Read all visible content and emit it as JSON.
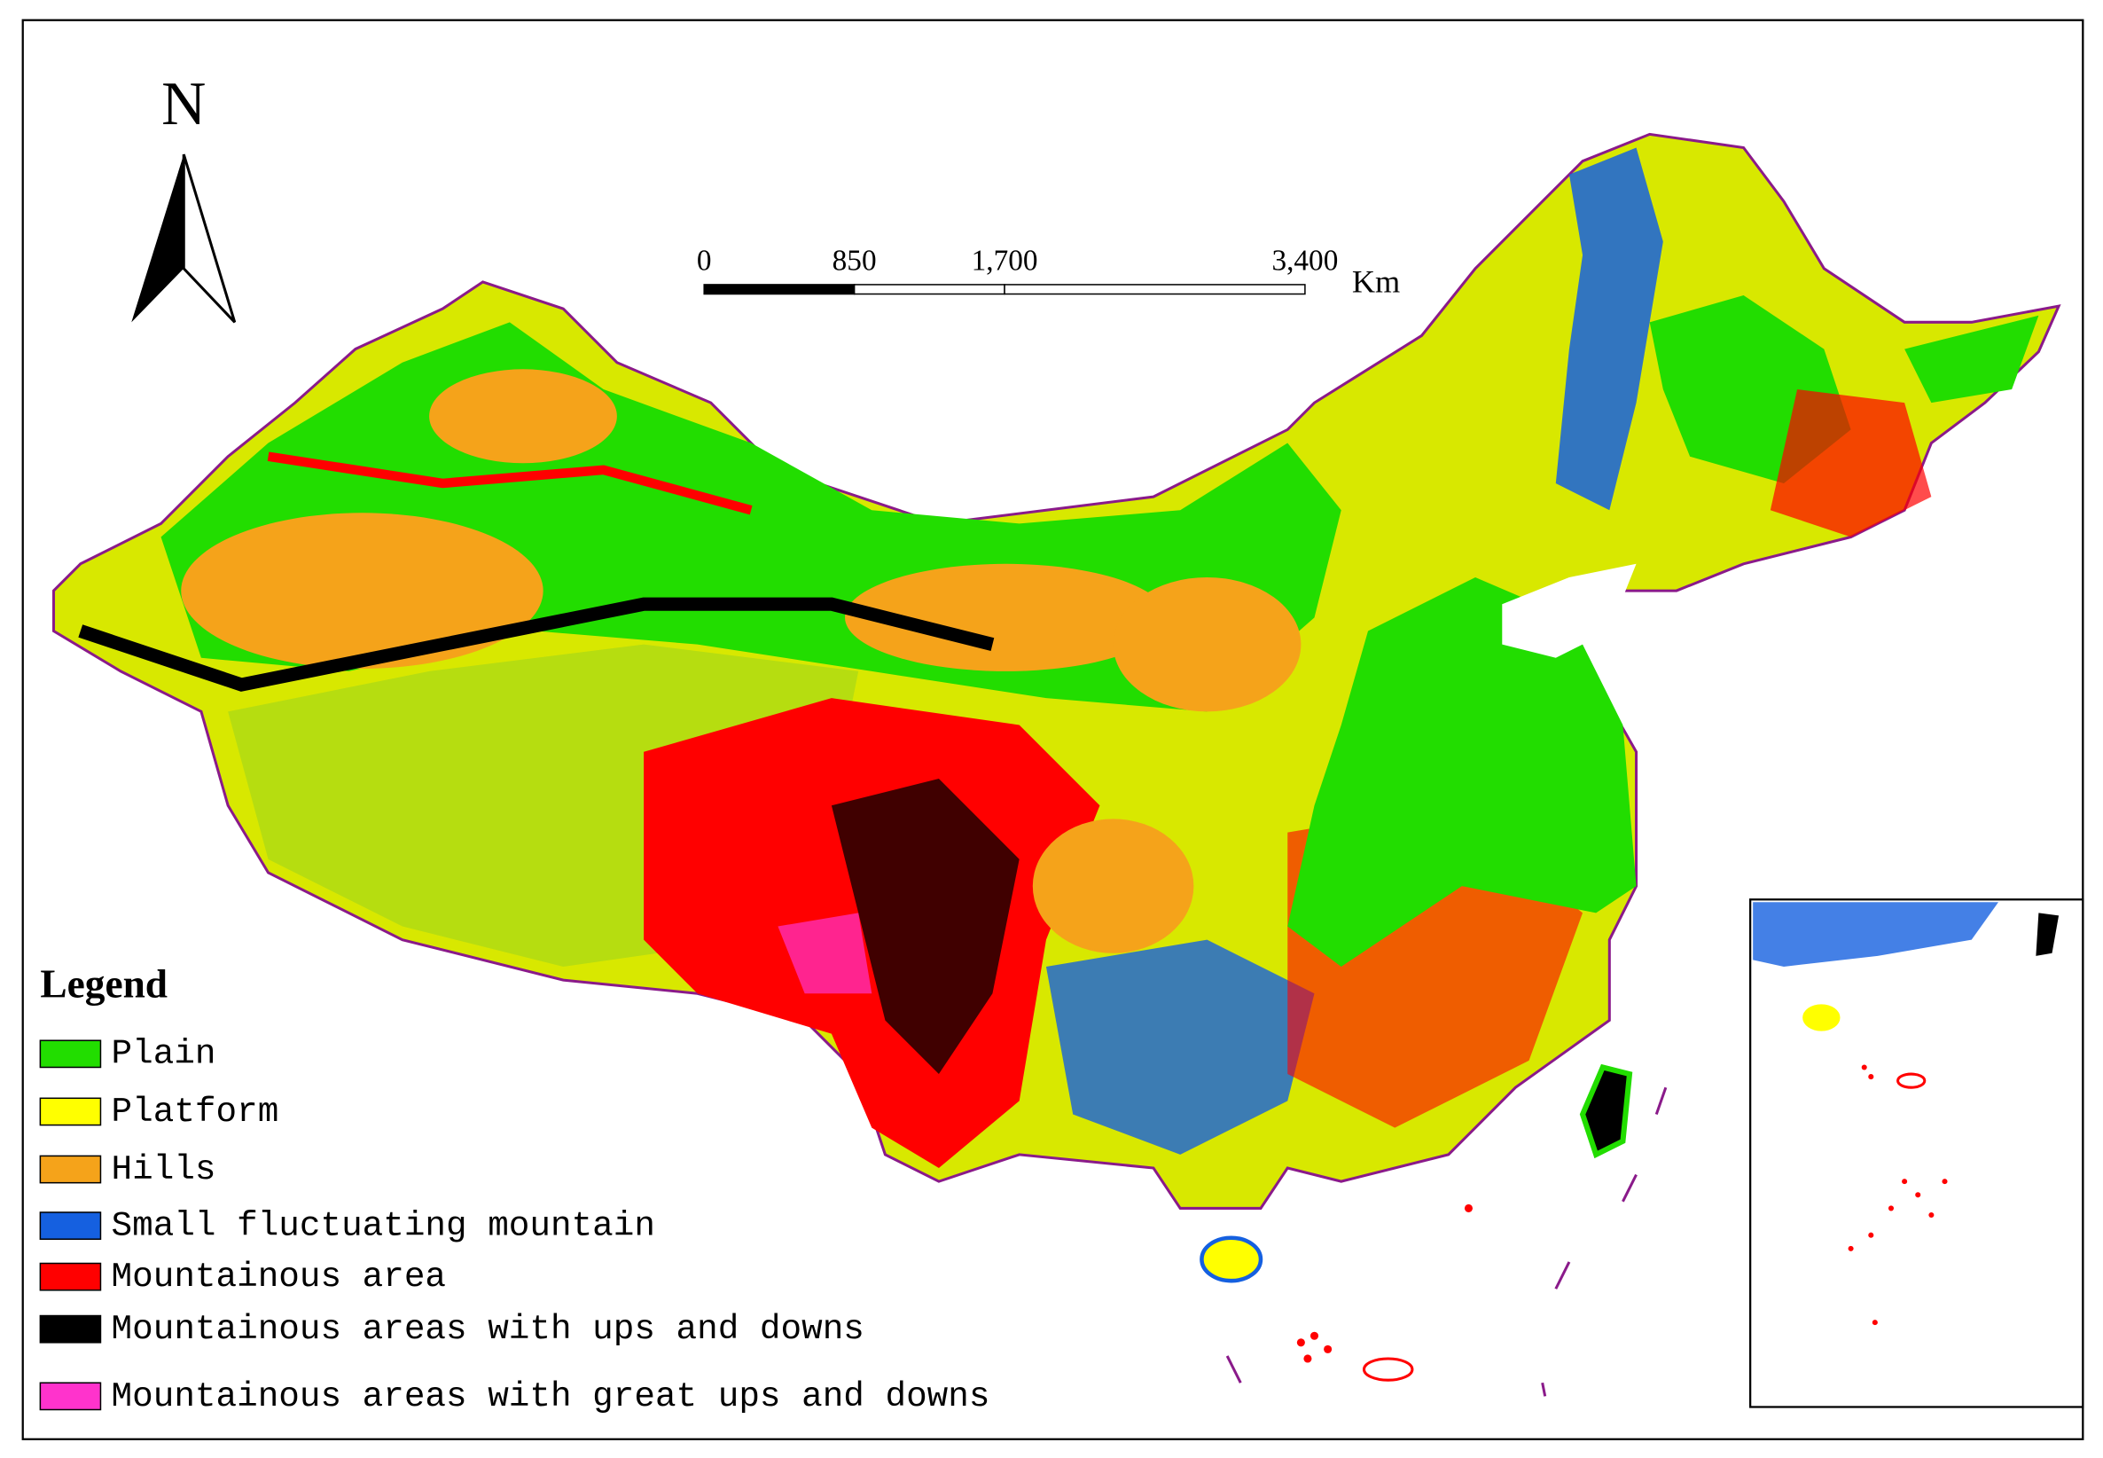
{
  "north_arrow": {
    "label": "N"
  },
  "scale_bar": {
    "unit": "Km",
    "ticks": [
      0,
      850,
      {
        "value": 1700,
        "label": "1,700"
      },
      {
        "value": 3400,
        "label": "3,400"
      }
    ]
  },
  "legend": {
    "title": "Legend",
    "items": [
      {
        "label": "Plain",
        "color": "#22dd00"
      },
      {
        "label": "Platform",
        "color": "#ffff00"
      },
      {
        "label": "Hills",
        "color": "#f5a31a"
      },
      {
        "label": "Small fluctuating mountain",
        "color": "#1560e0"
      },
      {
        "label": "Mountainous area",
        "color": "#ff0000"
      },
      {
        "label": "Mountainous areas with ups and downs",
        "color": "#000000"
      },
      {
        "label": "Mountainous areas with great ups and downs",
        "color": "#ff33cc"
      }
    ]
  }
}
